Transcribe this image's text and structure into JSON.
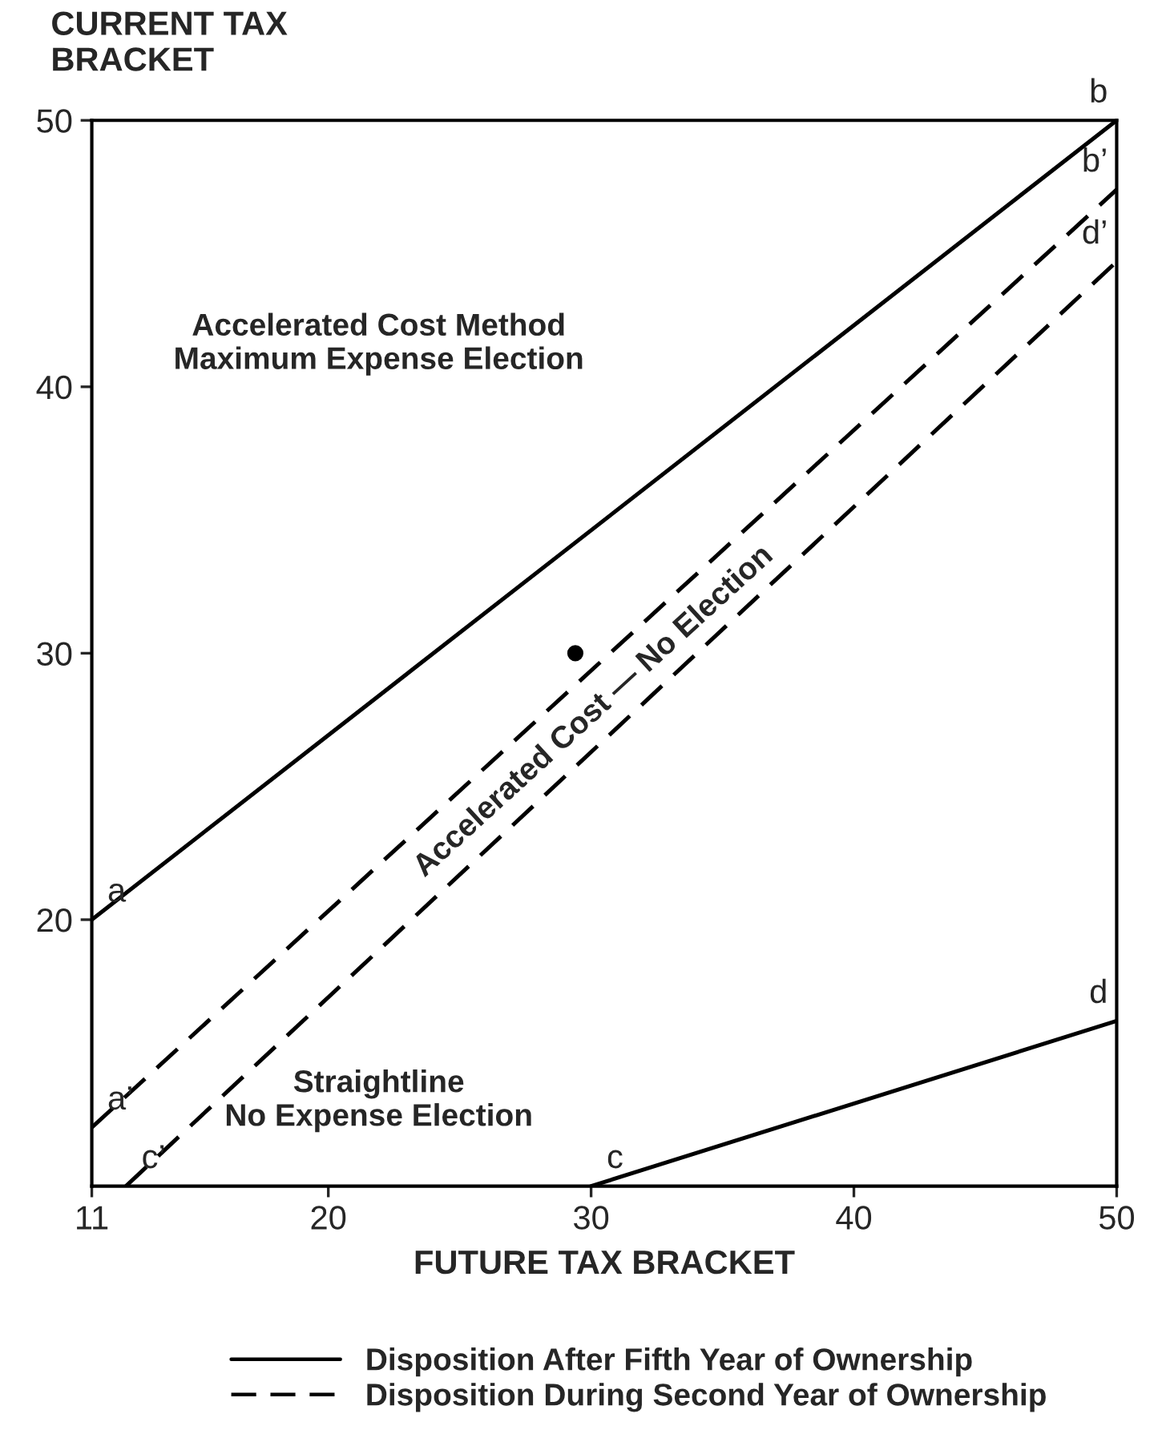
{
  "chart_data": {
    "type": "line",
    "xlabel": "FUTURE TAX BRACKET",
    "ylabel": "CURRENT TAX\nBRACKET",
    "xlim": [
      11,
      50
    ],
    "ylim": [
      10,
      50
    ],
    "xticks": [
      11,
      20,
      30,
      40,
      50
    ],
    "yticks": [
      20,
      30,
      40,
      50
    ],
    "grid": false,
    "legend": "bottom",
    "marker": "none",
    "series": [
      {
        "name": "Disposition After Fifth Year of Ownership",
        "color": "#000000",
        "line_style": "solid",
        "x": [
          11,
          50
        ],
        "values": [
          20,
          50
        ]
      },
      {
        "color": "#000000",
        "line_style": "solid",
        "x": [
          30,
          50
        ],
        "values": [
          10,
          16.2
        ]
      },
      {
        "name": "Disposition During Second Year of Ownership",
        "color": "#000000",
        "line_style": "dashed",
        "x": [
          11,
          50
        ],
        "values": [
          12.2,
          47.4
        ]
      },
      {
        "color": "#000000",
        "line_style": "dashed",
        "x": [
          12.3,
          50
        ],
        "values": [
          10,
          44.7
        ]
      },
      {
        "type": "scatter",
        "color": "#000000",
        "marker": "circle",
        "x": [
          29.4
        ],
        "values": [
          30
        ]
      }
    ],
    "annotations": [
      {
        "text": "a",
        "x": 11,
        "y": 20
      },
      {
        "text": "b",
        "x": 50,
        "y": 50
      },
      {
        "text": "a’",
        "x": 11,
        "y": 12.2
      },
      {
        "text": "b’",
        "x": 50,
        "y": 47.4
      },
      {
        "text": "c",
        "x": 30,
        "y": 10
      },
      {
        "text": "c’",
        "x": 12.3,
        "y": 10
      },
      {
        "text": "d",
        "x": 50,
        "y": 16.2
      },
      {
        "text": "d’",
        "x": 50,
        "y": 44.7
      },
      "Accelerated Cost Method\nMaximum Expense Election",
      "Accelerated Cost — No Election",
      "Straightline\nNo Expense Election"
    ]
  }
}
